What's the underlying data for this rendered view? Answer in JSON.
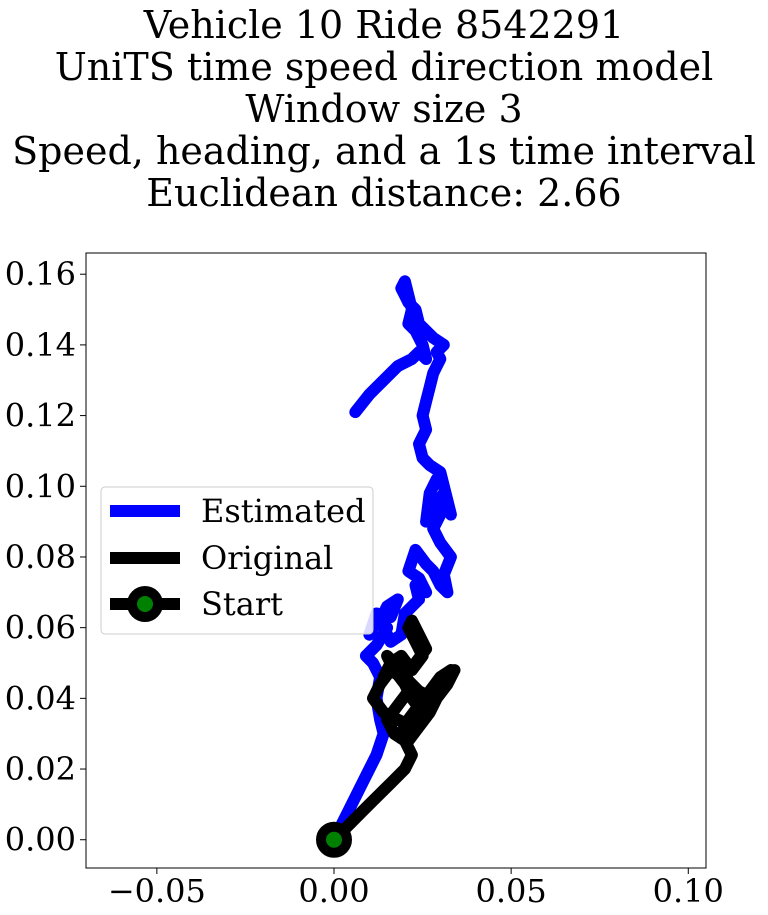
{
  "chart_data": {
    "type": "line",
    "title_lines": [
      "Vehicle 10 Ride 8542291",
      "UniTS time speed direction model",
      "Window size 3",
      "Speed, heading, and a 1s time interval",
      "Euclidean distance: 2.66"
    ],
    "xlabel": "",
    "ylabel": "",
    "xlim": [
      -0.07,
      0.105
    ],
    "ylim": [
      -0.008,
      0.166
    ],
    "x_ticks": [
      -0.05,
      0.0,
      0.05,
      0.1
    ],
    "x_tick_labels": [
      "−0.05",
      "0.00",
      "0.05",
      "0.10"
    ],
    "y_ticks": [
      0.0,
      0.02,
      0.04,
      0.06,
      0.08,
      0.1,
      0.12,
      0.14,
      0.16
    ],
    "y_tick_labels": [
      "0.00",
      "0.02",
      "0.04",
      "0.06",
      "0.08",
      "0.10",
      "0.12",
      "0.14",
      "0.16"
    ],
    "grid": false,
    "legend_position": "center-left",
    "series": [
      {
        "name": "Estimated",
        "color": "#0000ff",
        "x": [
          0.0,
          0.004,
          0.008,
          0.012,
          0.014,
          0.013,
          0.012,
          0.013,
          0.011,
          0.009,
          0.012,
          0.015,
          0.012,
          0.01,
          0.012,
          0.016,
          0.018,
          0.015,
          0.013,
          0.016,
          0.019,
          0.02,
          0.022,
          0.024,
          0.023,
          0.026,
          0.024,
          0.021,
          0.023,
          0.026,
          0.028,
          0.03,
          0.032,
          0.031,
          0.033,
          0.03,
          0.028,
          0.03,
          0.032,
          0.033,
          0.031,
          0.028,
          0.026,
          0.027,
          0.029,
          0.031,
          0.032,
          0.03,
          0.027,
          0.025,
          0.024,
          0.026,
          0.025,
          0.026,
          0.027,
          0.028,
          0.029,
          0.03,
          0.029,
          0.031,
          0.028,
          0.026,
          0.024,
          0.023,
          0.021,
          0.02,
          0.019,
          0.02,
          0.022,
          0.021,
          0.023,
          0.025,
          0.026,
          0.024,
          0.022,
          0.018,
          0.014,
          0.01,
          0.006
        ],
        "y": [
          0.0,
          0.008,
          0.016,
          0.024,
          0.03,
          0.034,
          0.04,
          0.046,
          0.05,
          0.052,
          0.055,
          0.06,
          0.062,
          0.058,
          0.064,
          0.063,
          0.068,
          0.066,
          0.062,
          0.056,
          0.058,
          0.064,
          0.066,
          0.068,
          0.072,
          0.07,
          0.074,
          0.076,
          0.082,
          0.078,
          0.076,
          0.072,
          0.07,
          0.075,
          0.08,
          0.084,
          0.088,
          0.092,
          0.096,
          0.092,
          0.098,
          0.094,
          0.09,
          0.098,
          0.102,
          0.1,
          0.096,
          0.104,
          0.106,
          0.108,
          0.112,
          0.116,
          0.12,
          0.124,
          0.128,
          0.132,
          0.134,
          0.136,
          0.138,
          0.14,
          0.142,
          0.144,
          0.146,
          0.15,
          0.152,
          0.154,
          0.156,
          0.158,
          0.15,
          0.146,
          0.144,
          0.14,
          0.136,
          0.138,
          0.136,
          0.134,
          0.13,
          0.126,
          0.121
        ]
      },
      {
        "name": "Original",
        "color": "#000000",
        "x": [
          0.0,
          0.004,
          0.008,
          0.012,
          0.016,
          0.02,
          0.022,
          0.02,
          0.017,
          0.015,
          0.018,
          0.021,
          0.019,
          0.016,
          0.013,
          0.011,
          0.014,
          0.018,
          0.022,
          0.025,
          0.023,
          0.02,
          0.017,
          0.015,
          0.017,
          0.02,
          0.024,
          0.028,
          0.031,
          0.033,
          0.03,
          0.027,
          0.024,
          0.021,
          0.019,
          0.021,
          0.024,
          0.027,
          0.029,
          0.032,
          0.034,
          0.031,
          0.028,
          0.025,
          0.022,
          0.02,
          0.023,
          0.026,
          0.024,
          0.022,
          0.021,
          0.023,
          0.025,
          0.022,
          0.019,
          0.016,
          0.014
        ],
        "y": [
          0.0,
          0.004,
          0.008,
          0.012,
          0.016,
          0.02,
          0.024,
          0.028,
          0.03,
          0.034,
          0.038,
          0.042,
          0.046,
          0.048,
          0.044,
          0.04,
          0.036,
          0.034,
          0.032,
          0.036,
          0.04,
          0.044,
          0.048,
          0.052,
          0.05,
          0.046,
          0.042,
          0.04,
          0.044,
          0.048,
          0.046,
          0.042,
          0.038,
          0.034,
          0.03,
          0.028,
          0.032,
          0.036,
          0.04,
          0.044,
          0.048,
          0.044,
          0.04,
          0.036,
          0.04,
          0.046,
          0.05,
          0.054,
          0.058,
          0.062,
          0.06,
          0.056,
          0.052,
          0.048,
          0.052,
          0.05,
          0.046
        ]
      }
    ],
    "start_marker": {
      "name": "Start",
      "x": 0.0,
      "y": 0.0,
      "edge_color": "#000000",
      "face_color": "#008000"
    }
  }
}
